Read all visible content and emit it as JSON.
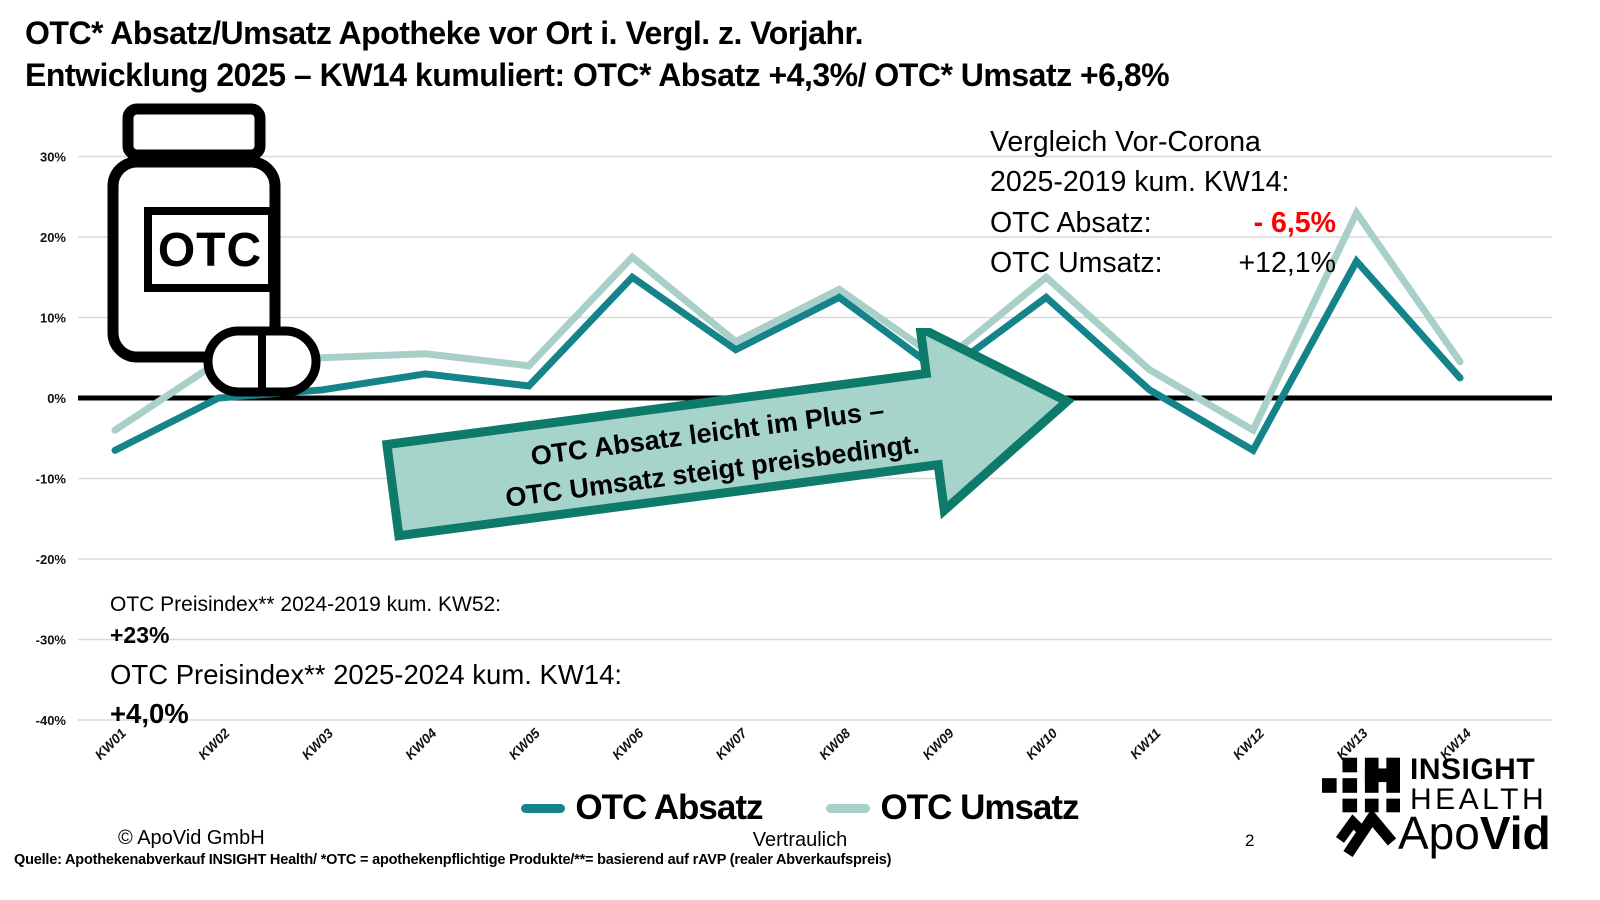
{
  "title": {
    "line1": "OTC* Absatz/Umsatz Apotheke vor Ort i. Vergl. z. Vorjahr.",
    "line2": "Entwicklung 2025 – KW14 kumuliert: OTC* Absatz +4,3%/ OTC* Umsatz +6,8%"
  },
  "comparison_box": {
    "line1": "Vergleich Vor-Corona",
    "line2": "2025-2019 kum. KW14:",
    "absatz_label": "OTC Absatz:",
    "absatz_value": "- 6,5%",
    "absatz_value_color": "#ff0000",
    "umsatz_label": "OTC Umsatz:",
    "umsatz_value": "+12,1%"
  },
  "arrow_callout": {
    "line1": "OTC Absatz leicht im Plus –",
    "line2": "OTC Umsatz steigt preisbedingt.",
    "fill": "#a7d4ca",
    "border": "#0d7a6a"
  },
  "preisindex": {
    "line1": "OTC Preisindex** 2024-2019 kum. KW52:",
    "value1": "+23%",
    "line2": "OTC Preisindex** 2025-2024 kum. KW14:",
    "value2": "+4,0%"
  },
  "bottle_icon": {
    "label": "OTC"
  },
  "chart_data": {
    "type": "line",
    "categories": [
      "KW01",
      "KW02",
      "KW03",
      "KW04",
      "KW05",
      "KW06",
      "KW07",
      "KW08",
      "KW09",
      "KW10",
      "KW11",
      "KW12",
      "KW13",
      "KW14"
    ],
    "series": [
      {
        "name": "OTC Absatz",
        "color": "#15838a",
        "values": [
          -6.5,
          0,
          1,
          3,
          1.5,
          15,
          6,
          12.5,
          3,
          12.5,
          1,
          -6.5,
          17,
          2.5
        ]
      },
      {
        "name": "OTC Umsatz",
        "color": "#a8cfc8",
        "values": [
          -4,
          4.5,
          5,
          5.5,
          4,
          17.5,
          7,
          13.5,
          4.5,
          15,
          3.5,
          -4,
          23,
          4.5
        ]
      }
    ],
    "ylim": [
      -40,
      30
    ],
    "ytick_step": 10,
    "ytick_suffix": "%",
    "grid": true,
    "zero_line": true,
    "legend_position": "bottom",
    "gridline_color": "#d9d9d9",
    "zero_line_color": "#000000"
  },
  "footer": {
    "copyright": "© ApoVid GmbH",
    "confidential": "Vertraulich",
    "page_number": "2",
    "source": "Quelle: Apothekenabverkauf INSIGHT Health/ *OTC = apothekenpflichtige Produkte/**= basierend auf rAVP (realer Abverkaufspreis)"
  },
  "logos": {
    "insight_line1": "INSIGHT",
    "insight_line2": "HEALTH",
    "apovid_normal": "Apo",
    "apovid_bold": "Vid"
  }
}
